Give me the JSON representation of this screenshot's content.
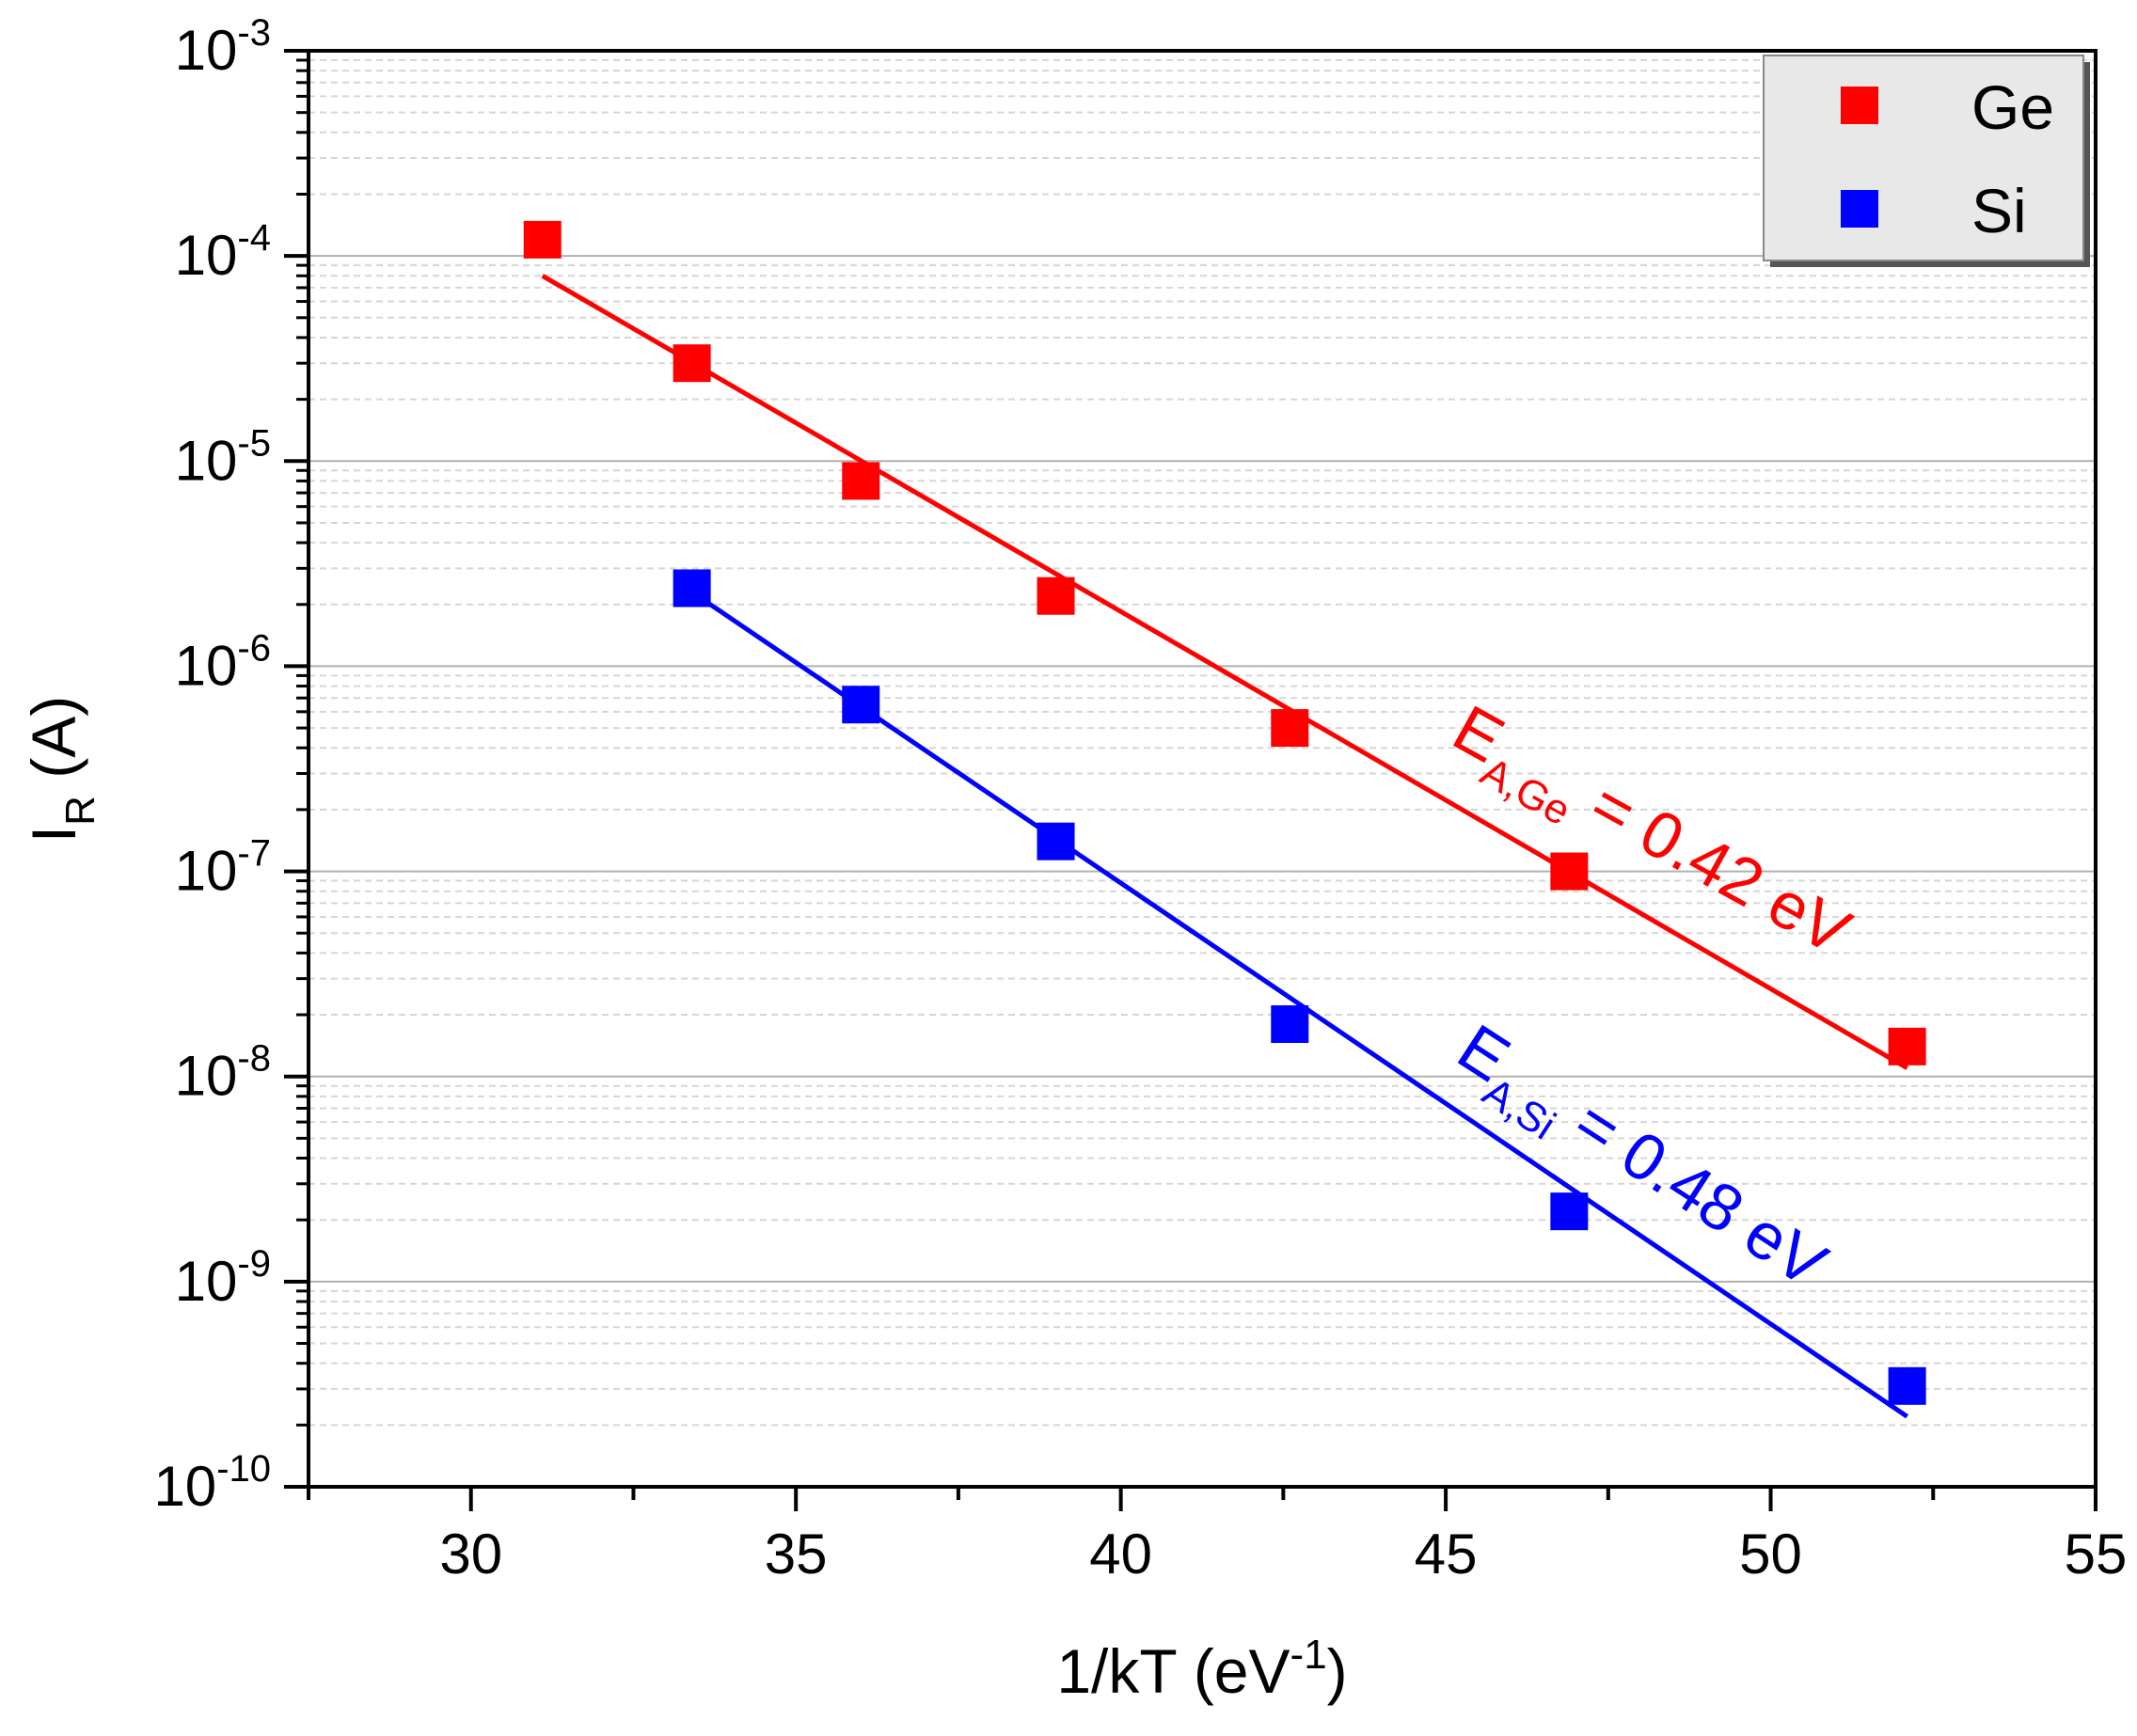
{
  "chart_data": {
    "type": "scatter",
    "title": "",
    "xlabel": {
      "main": "1/kT (eV",
      "sup": "-1",
      "close": ")"
    },
    "ylabel": {
      "main": "I",
      "sub": "R",
      "unit": " (A)"
    },
    "xlim": [
      27.5,
      55
    ],
    "ylim_log10": [
      -10,
      -3
    ],
    "yscale": "log",
    "x_ticks": [
      30,
      35,
      40,
      45,
      50,
      55
    ],
    "x_tick_labels": [
      "30",
      "35",
      "40",
      "45",
      "50",
      "55"
    ],
    "y_ticks_exponent": [
      -3,
      -4,
      -5,
      -6,
      -7,
      -8,
      -9,
      -10
    ],
    "y_tick_base": "10",
    "y_tick_exponents": [
      "-3",
      "-4",
      "-5",
      "-6",
      "-7",
      "-8",
      "-9",
      "-10"
    ],
    "grid": true,
    "legend_position": "top-right",
    "series": [
      {
        "name": "Ge",
        "color": "#ff0000",
        "x": [
          31.1,
          33.4,
          36.0,
          39.0,
          42.6,
          46.9,
          52.1
        ],
        "y": [
          0.00012,
          3e-05,
          8e-06,
          2.2e-06,
          5e-07,
          1e-07,
          1.4e-08
        ],
        "fit": {
          "x": [
            31.1,
            52.1
          ],
          "y": [
            8e-05,
            1.1e-08
          ]
        }
      },
      {
        "name": "Si",
        "color": "#0000ff",
        "x": [
          33.4,
          36.0,
          39.0,
          42.6,
          46.9,
          52.1
        ],
        "y": [
          2.4e-06,
          6.5e-07,
          1.4e-07,
          1.8e-08,
          2.2e-09,
          3.1e-10
        ],
        "fit": {
          "x": [
            33.4,
            52.1
          ],
          "y": [
            2.3e-06,
            2.2e-10
          ]
        }
      }
    ],
    "annotations": [
      {
        "id": "ge",
        "color": "#ff0000",
        "main": "E",
        "sub": "A,Ge",
        "rest": " = 0.42 eV"
      },
      {
        "id": "si",
        "color": "#0000ff",
        "main": "E",
        "sub": "A,Si",
        "rest": " = 0.48 eV"
      }
    ]
  }
}
